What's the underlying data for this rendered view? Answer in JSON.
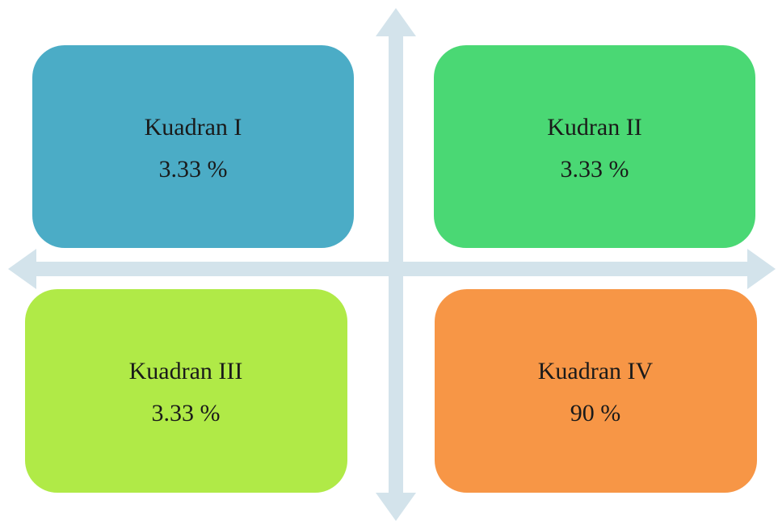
{
  "quadrants": [
    {
      "label": "Kuadran I",
      "value": "3.33 %"
    },
    {
      "label": "Kudran II",
      "value": "3.33 %"
    },
    {
      "label": "Kuadran III",
      "value": "3.33 %"
    },
    {
      "label": "Kuadran IV",
      "value": "90 %"
    }
  ]
}
